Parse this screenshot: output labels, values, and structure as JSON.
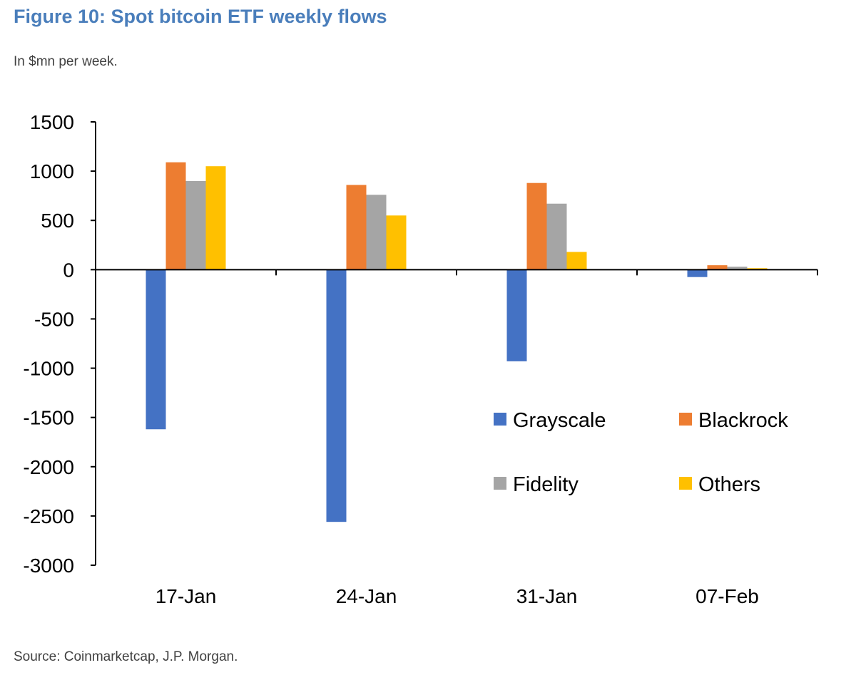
{
  "title": "Figure 10: Spot bitcoin ETF weekly flows",
  "subtitle": "In $mn per week.",
  "source": "Source: Coinmarketcap, J.P. Morgan.",
  "chart_data": {
    "type": "bar",
    "categories": [
      "17-Jan",
      "24-Jan",
      "31-Jan",
      "07-Feb"
    ],
    "series": [
      {
        "name": "Grayscale",
        "color": "#4472c4",
        "values": [
          -1620,
          -2560,
          -930,
          -75
        ]
      },
      {
        "name": "Blackrock",
        "color": "#ed7d31",
        "values": [
          1090,
          860,
          880,
          45
        ]
      },
      {
        "name": "Fidelity",
        "color": "#a5a5a5",
        "values": [
          900,
          760,
          670,
          30
        ]
      },
      {
        "name": "Others",
        "color": "#ffc000",
        "values": [
          1050,
          550,
          180,
          15
        ]
      }
    ],
    "ylim": [
      -3000,
      1500
    ],
    "yticks": [
      1500,
      1000,
      500,
      0,
      -500,
      -1000,
      -1500,
      -2000,
      -2500,
      -3000
    ],
    "grid": false,
    "legend_position": "bottom-right"
  }
}
